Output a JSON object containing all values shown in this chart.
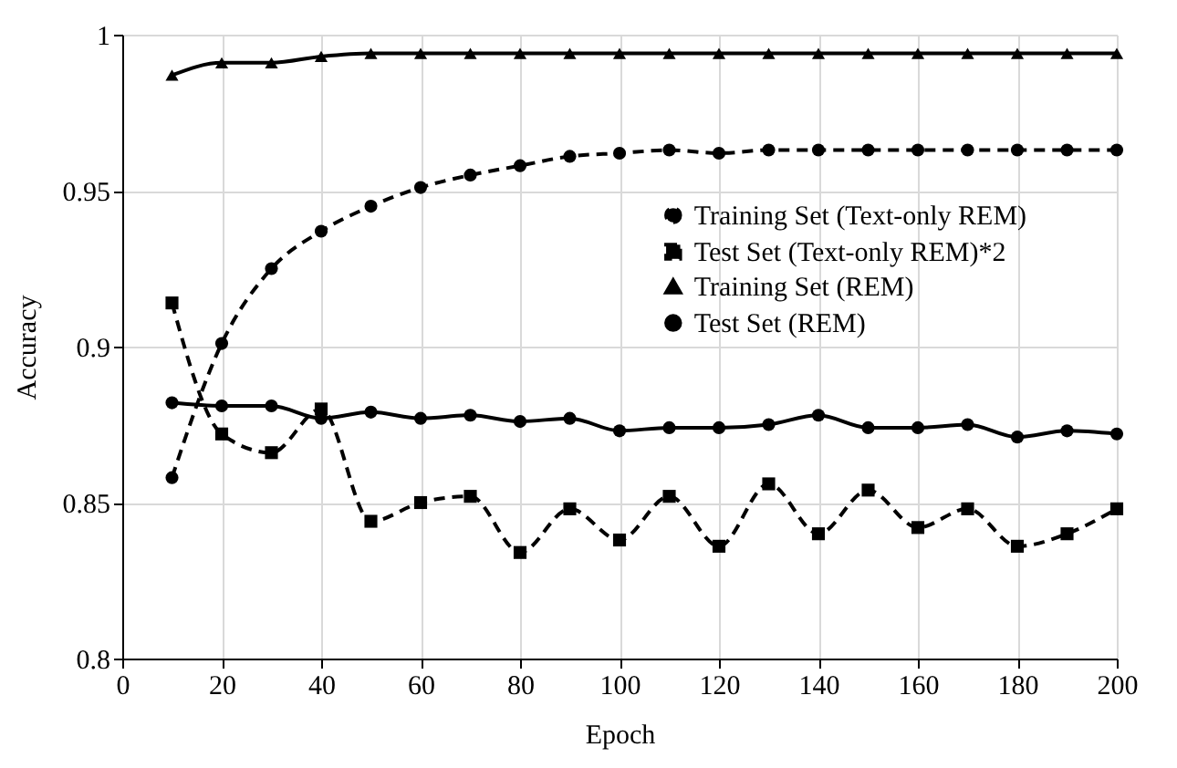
{
  "chart_data": {
    "type": "line",
    "xlabel": "Epoch",
    "ylabel": "Accuracy",
    "x": [
      10,
      20,
      30,
      40,
      50,
      60,
      70,
      80,
      90,
      100,
      110,
      120,
      130,
      140,
      150,
      160,
      170,
      180,
      190,
      200
    ],
    "series": [
      {
        "name": "Training Set (Text-only REM)",
        "color": "#000000",
        "marker": "circle",
        "line_style": "dashed",
        "values": [
          0.858,
          0.901,
          0.925,
          0.937,
          0.945,
          0.951,
          0.955,
          0.958,
          0.961,
          0.962,
          0.963,
          0.962,
          0.963,
          0.963,
          0.963,
          0.963,
          0.963,
          0.963,
          0.963,
          0.963
        ]
      },
      {
        "name": "Test Set (Text-only REM)*2",
        "color": "#000000",
        "marker": "square",
        "line_style": "dashed",
        "values": [
          0.914,
          0.872,
          0.866,
          0.88,
          0.844,
          0.85,
          0.852,
          0.834,
          0.848,
          0.838,
          0.852,
          0.836,
          0.856,
          0.84,
          0.854,
          0.842,
          0.848,
          0.836,
          0.84,
          0.848
        ]
      },
      {
        "name": "Training Set (REM)",
        "color": "#000000",
        "marker": "triangle",
        "line_style": "solid",
        "values": [
          0.987,
          0.991,
          0.991,
          0.993,
          0.994,
          0.994,
          0.994,
          0.994,
          0.994,
          0.994,
          0.994,
          0.994,
          0.994,
          0.994,
          0.994,
          0.994,
          0.994,
          0.994,
          0.994,
          0.994
        ]
      },
      {
        "name": "Test Set (REM)",
        "color": "#000000",
        "marker": "circle",
        "line_style": "solid",
        "values": [
          0.882,
          0.881,
          0.881,
          0.877,
          0.879,
          0.877,
          0.878,
          0.876,
          0.877,
          0.873,
          0.874,
          0.874,
          0.875,
          0.878,
          0.874,
          0.874,
          0.875,
          0.871,
          0.873,
          0.872
        ]
      }
    ],
    "xlim": [
      0,
      200
    ],
    "xticks": [
      0,
      20,
      40,
      60,
      80,
      100,
      120,
      140,
      160,
      180,
      200
    ],
    "ylim": [
      0.8,
      1
    ],
    "yticks": [
      0.8,
      0.85,
      0.9,
      0.95,
      1
    ],
    "grid": true,
    "legend": "right"
  }
}
